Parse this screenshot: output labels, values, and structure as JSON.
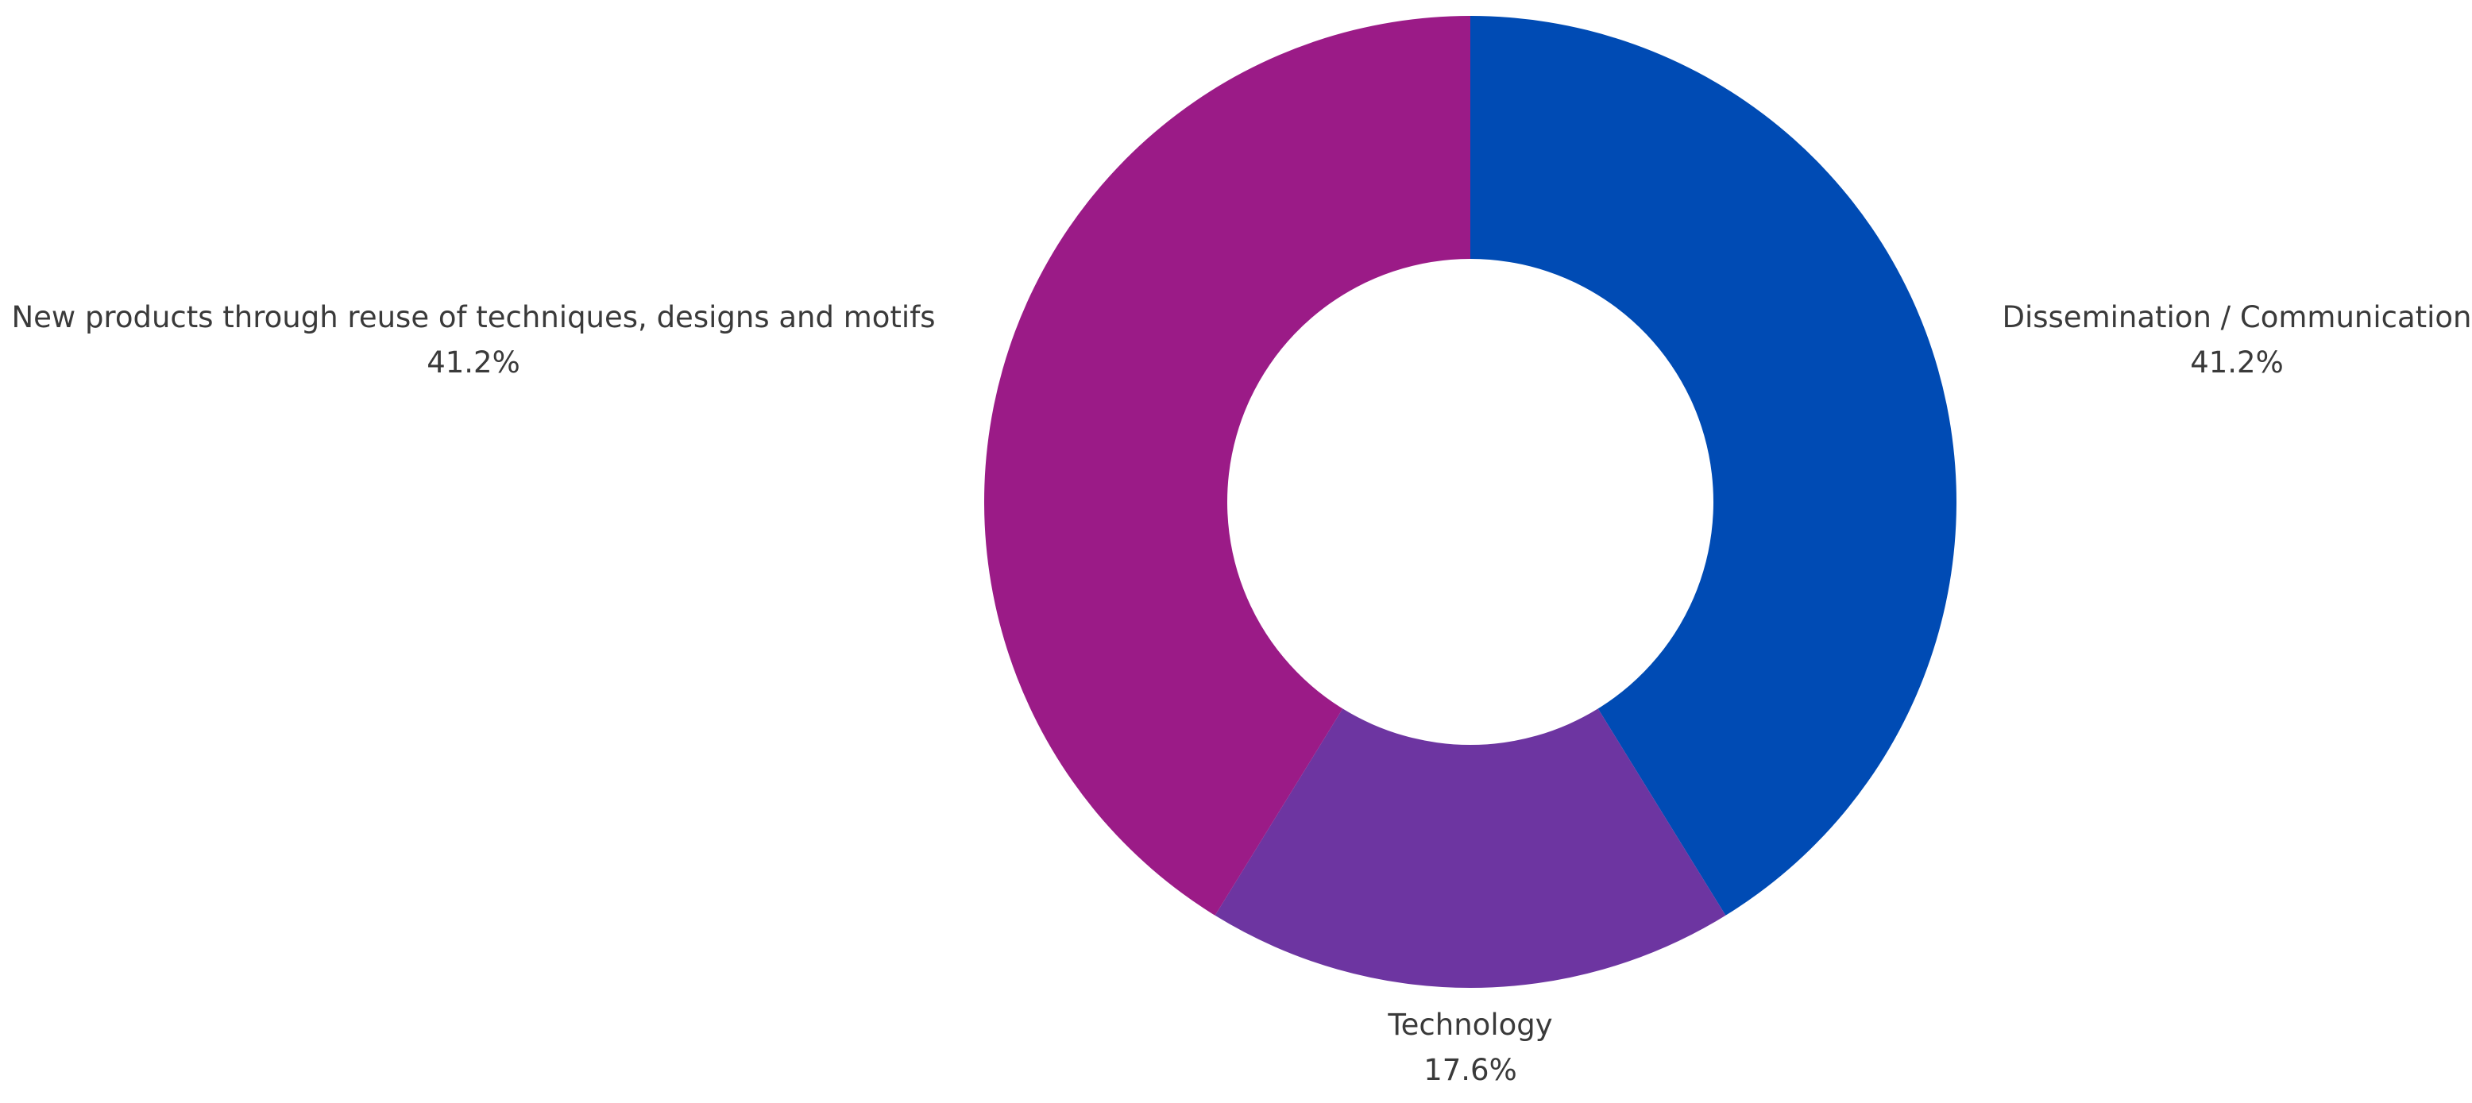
{
  "chart_data": {
    "type": "pie",
    "variant": "donut",
    "start_angle": "12 o'clock",
    "direction": "clockwise",
    "labels_position": "outside",
    "slices": [
      {
        "label": "Dissemination / Communication",
        "value": 41.2,
        "value_label": "41.2%",
        "color": "#004bb4"
      },
      {
        "label": "Technology",
        "value": 17.6,
        "value_label": "17.6%",
        "color": "#6d35a1"
      },
      {
        "label": "New products through reuse of techniques, designs and motifs",
        "value": 41.2,
        "value_label": "41.2%",
        "color": "#9b1b87"
      }
    ],
    "title": ""
  }
}
